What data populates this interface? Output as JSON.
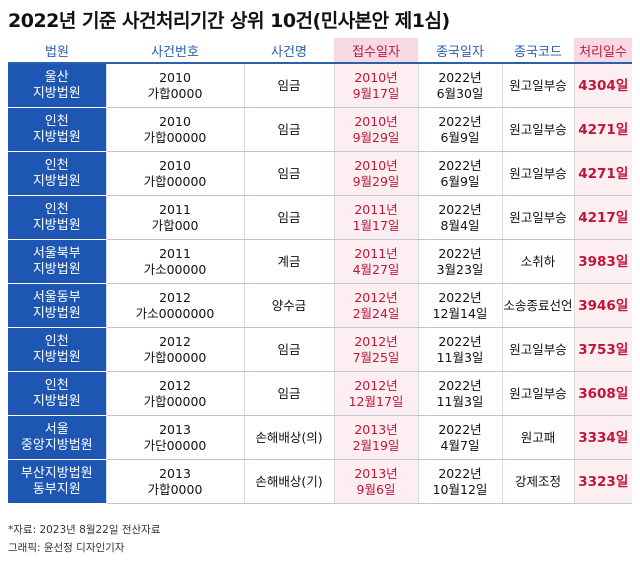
{
  "title": "2022년 기준 사건처리기간 상위 10건(민사본안 제1심)",
  "headers": [
    "법원",
    "사건번호",
    "사건명",
    "접수일자",
    "종국일자",
    "종국코드",
    "처리일수"
  ],
  "rows": [
    {
      "court": "울산\n지방법원",
      "case_no": "2010\n가합0000",
      "name": "임금",
      "received": "2010년\n9월17일",
      "closed": "2022년\n6월30일",
      "code": "원고일부승",
      "days": "4304일"
    },
    {
      "court": "인천\n지방법원",
      "case_no": "2010\n가합00000",
      "name": "임금",
      "received": "2010년\n9월29일",
      "closed": "2022년\n6월9일",
      "code": "원고일부승",
      "days": "4271일"
    },
    {
      "court": "인천\n지방법원",
      "case_no": "2010\n가합00000",
      "name": "임금",
      "received": "2010년\n9월29일",
      "closed": "2022년\n6월9일",
      "code": "원고일부승",
      "days": "4271일"
    },
    {
      "court": "인천\n지방법원",
      "case_no": "2011\n가합000",
      "name": "임금",
      "received": "2011년\n1월17일",
      "closed": "2022년\n8월4일",
      "code": "원고일부승",
      "days": "4217일"
    },
    {
      "court": "서울북부\n지방법원",
      "case_no": "2011\n가소00000",
      "name": "계금",
      "received": "2011년\n4월27일",
      "closed": "2022년\n3월23일",
      "code": "소취하",
      "days": "3983일"
    },
    {
      "court": "서울동부\n지방법원",
      "case_no": "2012\n가소0000000",
      "name": "양수금",
      "received": "2012년\n2월24일",
      "closed": "2022년\n12월14일",
      "code": "소송종료선언",
      "days": "3946일"
    },
    {
      "court": "인천\n지방법원",
      "case_no": "2012\n가합00000",
      "name": "임금",
      "received": "2012년\n7월25일",
      "closed": "2022년\n11월3일",
      "code": "원고일부승",
      "days": "3753일"
    },
    {
      "court": "인천\n지방법원",
      "case_no": "2012\n가합00000",
      "name": "임금",
      "received": "2012년\n12월17일",
      "closed": "2022년\n11월3일",
      "code": "원고일부승",
      "days": "3608일"
    },
    {
      "court": "서울\n중앙지방법원",
      "case_no": "2013\n가단00000",
      "name": "손해배상(의)",
      "received": "2013년\n2월19일",
      "closed": "2022년\n4월7일",
      "code": "원고패",
      "days": "3334일"
    },
    {
      "court": "부산지방법원\n동부지원",
      "case_no": "2013\n가합0000",
      "name": "손해배상(기)",
      "received": "2013년\n9월6일",
      "closed": "2022년\n10월12일",
      "code": "강제조정",
      "days": "3323일"
    }
  ],
  "footer": {
    "source": "*자료: 2023년 8월22일 전산자료",
    "graphic": "그래픽: 윤선정 디자인기자"
  },
  "colors": {
    "court_bg": "#1d57b3",
    "accent_red": "#c0153a",
    "pink_bg": "#fdeef2",
    "header_blue": "#2b5fb0"
  }
}
